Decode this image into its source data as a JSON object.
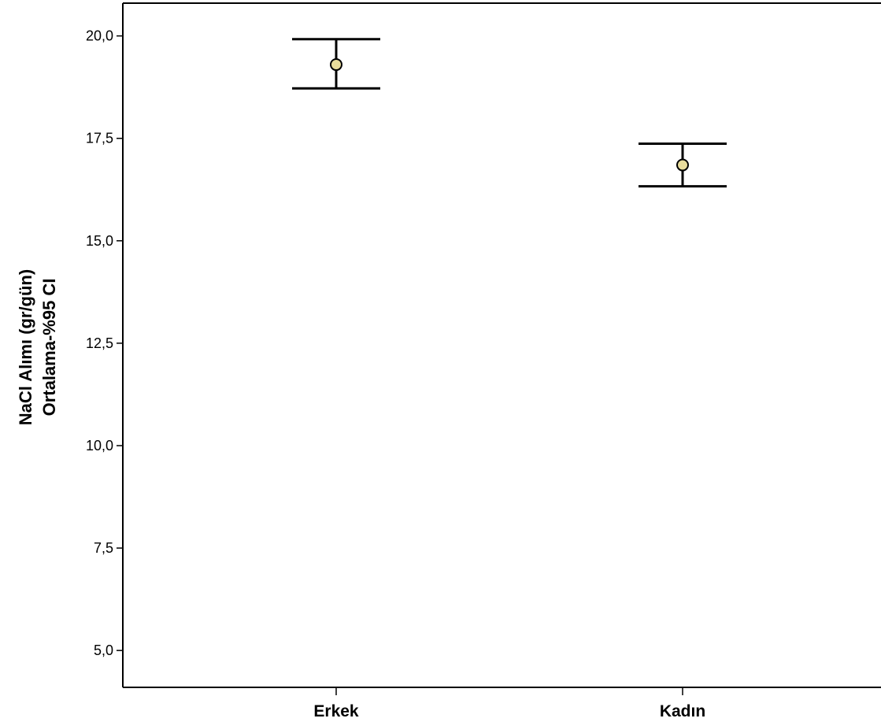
{
  "chart_data": {
    "type": "errorbar",
    "categories": [
      "Erkek",
      "Kadın"
    ],
    "series": [
      {
        "means": [
          19.3,
          16.85
        ],
        "ci_lower": [
          18.72,
          16.33
        ],
        "ci_upper": [
          19.92,
          17.37
        ]
      }
    ],
    "ylabel_lines": [
      "NaCl Alımı (gr/gün)",
      "Ortalama-%95 CI"
    ],
    "yticks": [
      "5,0",
      "7,5",
      "10,0",
      "12,5",
      "15,0",
      "17,5",
      "20,0"
    ],
    "ytick_values": [
      5.0,
      7.5,
      10.0,
      12.5,
      15.0,
      17.5,
      20.0
    ],
    "ylim": [
      4.1,
      20.8
    ],
    "grid": false,
    "marker_color": "#e8dc9c",
    "line_color": "#000000"
  }
}
